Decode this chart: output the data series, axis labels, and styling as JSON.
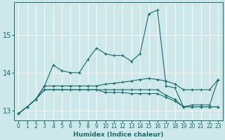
{
  "xlabel": "Humidex (Indice chaleur)",
  "ylabel": "",
  "bg_color": "#cce8ea",
  "grid_color": "#ffffff",
  "hgrid_color": "#d4a0a0",
  "line_color": "#1a6b6b",
  "xlim": [
    -0.5,
    23.5
  ],
  "ylim": [
    12.75,
    15.85
  ],
  "yticks": [
    13,
    14,
    15
  ],
  "xticks": [
    0,
    1,
    2,
    3,
    4,
    5,
    6,
    7,
    8,
    9,
    10,
    11,
    12,
    13,
    14,
    15,
    16,
    17,
    18,
    19,
    20,
    21,
    22,
    23
  ],
  "series": [
    [
      12.92,
      13.1,
      13.3,
      13.65,
      14.2,
      14.05,
      14.0,
      14.0,
      14.35,
      14.65,
      14.5,
      14.45,
      14.45,
      14.3,
      14.5,
      15.55,
      15.65,
      13.65,
      13.6,
      13.1,
      13.15,
      13.15,
      13.15,
      13.82
    ],
    [
      12.92,
      13.1,
      13.3,
      13.65,
      13.65,
      13.65,
      13.65,
      13.65,
      13.65,
      13.65,
      13.7,
      13.72,
      13.75,
      13.78,
      13.82,
      13.85,
      13.82,
      13.78,
      13.7,
      13.55,
      13.55,
      13.55,
      13.55,
      13.82
    ],
    [
      12.92,
      13.1,
      13.3,
      13.55,
      13.55,
      13.55,
      13.55,
      13.55,
      13.55,
      13.55,
      13.55,
      13.55,
      13.55,
      13.55,
      13.55,
      13.55,
      13.55,
      13.4,
      13.3,
      13.1,
      13.1,
      13.1,
      13.1,
      13.1
    ],
    [
      12.92,
      13.1,
      13.3,
      13.55,
      13.55,
      13.55,
      13.55,
      13.55,
      13.55,
      13.55,
      13.48,
      13.48,
      13.48,
      13.45,
      13.45,
      13.45,
      13.45,
      13.35,
      13.25,
      13.1,
      13.1,
      13.1,
      13.1,
      13.1
    ]
  ]
}
